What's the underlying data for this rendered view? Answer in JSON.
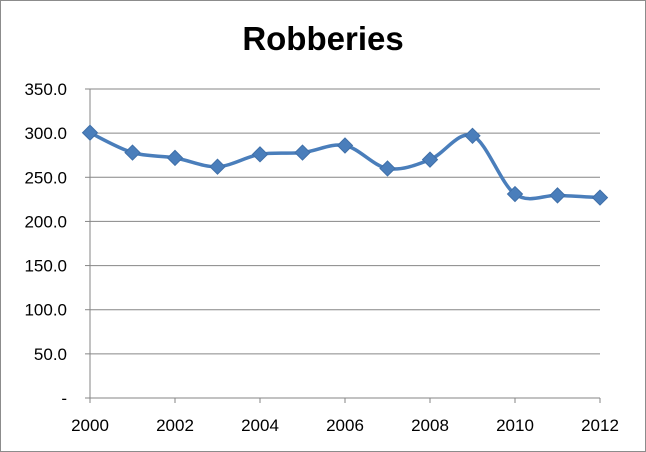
{
  "chart_data": {
    "type": "line",
    "title": "Robberies",
    "xlabel": "",
    "ylabel": "",
    "x": [
      2000,
      2001,
      2002,
      2003,
      2004,
      2005,
      2006,
      2007,
      2008,
      2009,
      2010,
      2011,
      2012
    ],
    "series": [
      {
        "values": [
          300.5,
          278.0,
          272.0,
          262.0,
          276.0,
          278.0,
          286.0,
          260.0,
          270.0,
          297.0,
          231.0,
          229.5,
          227.0
        ]
      }
    ],
    "xlim": [
      2000,
      2012
    ],
    "ylim": [
      0,
      350
    ],
    "x_ticks": [
      2000,
      2002,
      2004,
      2006,
      2008,
      2010,
      2012
    ],
    "x_tick_labels": [
      "2000",
      "2002",
      "2004",
      "2006",
      "2008",
      "2010",
      "2012"
    ],
    "y_ticks": [
      0,
      50,
      100,
      150,
      200,
      250,
      300,
      350
    ],
    "y_tick_labels": [
      "-",
      "50.0",
      "100.0",
      "150.0",
      "200.0",
      "250.0",
      "300.0",
      "350.0"
    ],
    "grid": true,
    "legend": "none",
    "colors": {
      "series": "#4a7ebb",
      "grid": "#868686",
      "axis": "#868686"
    },
    "marker": "diamond",
    "smoothed": true
  }
}
